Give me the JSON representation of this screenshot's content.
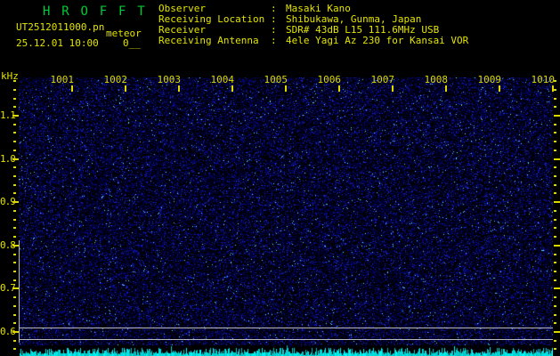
{
  "app": {
    "title": "H R O F F T"
  },
  "header": {
    "filename": "UT2512011000.pn",
    "station_label": "meteor",
    "datetime": "25.12.01 10:00",
    "echo_count": "0__",
    "info_rows": [
      {
        "label": "Observer",
        "separator": ":",
        "value": "Masaki Kano"
      },
      {
        "label": "Receiving Location",
        "separator": ":",
        "value": "Shibukawa, Gunma, Japan"
      },
      {
        "label": "Receiver",
        "separator": ":",
        "value": "SDR# 43dB L15 111.6MHz USB"
      },
      {
        "label": "Receiving Antenna",
        "separator": ":",
        "value": "4ele Yagi Az 230 for Kansai VOR"
      }
    ]
  },
  "chart_data": {
    "type": "heatmap",
    "title": "HROFFT 10-minute meteor-echo radio spectrogram, 25.12.01 10:00 UT",
    "x_axis": {
      "unit": "UT time HHMM",
      "tick_labels": [
        "1001",
        "1002",
        "1003",
        "1004",
        "1005",
        "1006",
        "1007",
        "1008",
        "1009",
        "1010"
      ],
      "range": [
        "1000",
        "1010"
      ]
    },
    "y_axis": {
      "unit": "kHz",
      "tick_labels": [
        "1.1",
        "1.0",
        "0.9",
        "0.8",
        "0.7",
        "0.6"
      ],
      "approx_range_khz": [
        0.56,
        1.18
      ],
      "minor_tick_step_khz": 0.02
    },
    "content": {
      "description": "uniform dark-blue background noise over black; no meteor echo traces visible during the 10-minute window",
      "echo_count_shown": 0,
      "detection_band_lines_khz": [
        0.61,
        0.585
      ],
      "minute_boundary_seam_at": "1005",
      "bottom_panel": "cyan signal-level bar graph along full width, flat low amplitude with small spikes"
    },
    "legend": "none",
    "grid": "off"
  },
  "render": {
    "noise_seed": 1337,
    "bar_seed": 77
  },
  "colors": {
    "background": "#000000",
    "title_green": "#00cc33",
    "text_yellow": "#e3e300",
    "axis_yellow": "#ddd800",
    "noise_blue": "#0000cc",
    "marker_gray": "#b8b8b8",
    "level_cyan": "#00e0e0"
  }
}
